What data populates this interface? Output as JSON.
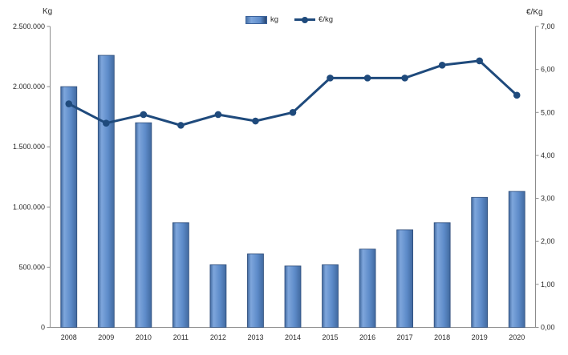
{
  "chart_data": {
    "type": "combo-bar-line",
    "title": "",
    "categories": [
      "2008",
      "2009",
      "2010",
      "2011",
      "2012",
      "2013",
      "2014",
      "2015",
      "2016",
      "2017",
      "2018",
      "2019",
      "2020"
    ],
    "series": [
      {
        "name": "kg",
        "type": "bar",
        "axis": "left",
        "values": [
          2000000,
          2260000,
          1700000,
          870000,
          520000,
          610000,
          510000,
          520000,
          650000,
          810000,
          870000,
          1080000,
          1130000
        ]
      },
      {
        "name": "€/kg",
        "type": "line",
        "axis": "right",
        "values": [
          5.2,
          4.75,
          4.95,
          4.7,
          4.95,
          4.8,
          5.0,
          5.8,
          5.8,
          5.8,
          6.1,
          6.2,
          5.4
        ]
      }
    ],
    "left_axis": {
      "title": "Kg",
      "min": 0,
      "max": 2500000,
      "tick_values": [
        0,
        500000,
        1000000,
        1500000,
        2000000,
        2500000
      ],
      "tick_labels": [
        "0",
        "500.000",
        "1.000.000",
        "1.500.000",
        "2.000.000",
        "2.500.000"
      ]
    },
    "right_axis": {
      "title": "€/Kg",
      "min": 0,
      "max": 7,
      "tick_values": [
        0,
        1,
        2,
        3,
        4,
        5,
        6,
        7
      ],
      "tick_labels": [
        "0,00",
        "1,00",
        "2,00",
        "3,00",
        "4,00",
        "5,00",
        "6,00",
        "7,00"
      ]
    },
    "legend_position": "top-center",
    "grid": false,
    "colors": {
      "bar_fill": "#5d8bc9",
      "bar_fill_light": "#7ea6dc",
      "bar_fill_dark": "#41699f",
      "bar_border": "#2e4d7a",
      "line": "#1f4a7c",
      "axis": "#8c8c8c",
      "text": "#2b2b2b"
    }
  }
}
